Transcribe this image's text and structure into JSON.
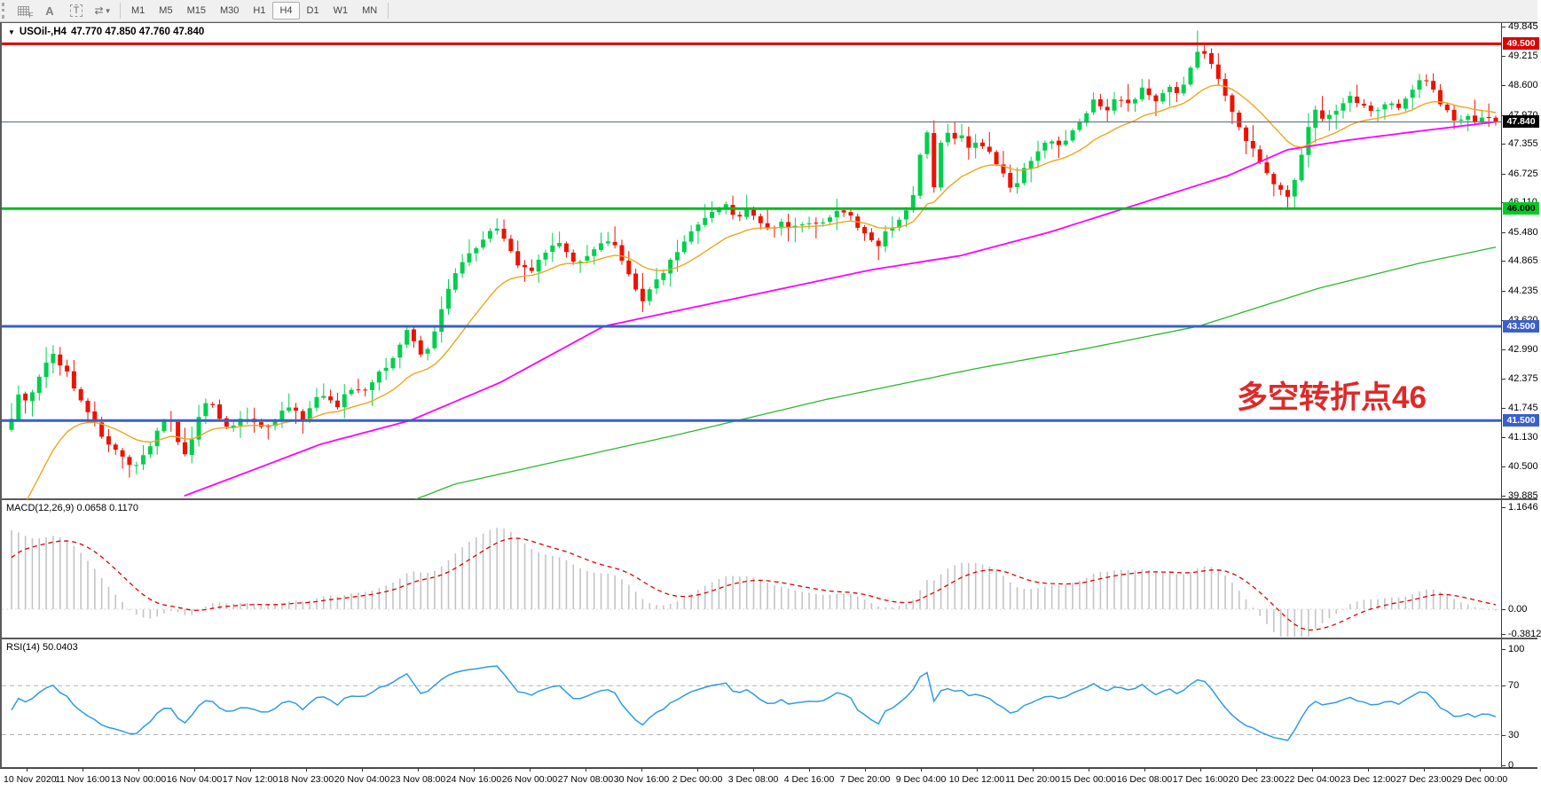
{
  "toolbar": {
    "tool_a_label": "A",
    "tool_t_label": "T",
    "grid_icon_sub": "F",
    "timeframes": [
      "M1",
      "M5",
      "M15",
      "M30",
      "H1",
      "H4",
      "D1",
      "W1",
      "MN"
    ],
    "active_timeframe": "H4"
  },
  "symbol_bar": {
    "symbol": "USOil-,H4",
    "ohlc": "47.770 47.850 47.760 47.840"
  },
  "main_chart": {
    "y_min": 39.885,
    "y_max": 49.845,
    "y_ticks": [
      {
        "v": 49.845,
        "t": "49.845"
      },
      {
        "v": 49.215,
        "t": "49.215"
      },
      {
        "v": 48.6,
        "t": "48.600"
      },
      {
        "v": 47.97,
        "t": "47.970"
      },
      {
        "v": 47.355,
        "t": "47.355"
      },
      {
        "v": 46.725,
        "t": "46.725"
      },
      {
        "v": 46.11,
        "t": "46.110"
      },
      {
        "v": 45.48,
        "t": "45.480"
      },
      {
        "v": 44.865,
        "t": "44.865"
      },
      {
        "v": 44.235,
        "t": "44.235"
      },
      {
        "v": 43.62,
        "t": "43.620"
      },
      {
        "v": 42.99,
        "t": "42.990"
      },
      {
        "v": 42.375,
        "t": "42.375"
      },
      {
        "v": 41.745,
        "t": "41.745"
      },
      {
        "v": 41.13,
        "t": "41.130"
      },
      {
        "v": 40.5,
        "t": "40.500"
      },
      {
        "v": 39.885,
        "t": "39.885"
      }
    ],
    "hlines": [
      {
        "value": 49.5,
        "label": "49.500",
        "color": "#dd0000",
        "width": 3,
        "label_bg": "#dd0000",
        "label_fg": "#ffffff"
      },
      {
        "value": 46.0,
        "label": "46.000",
        "color": "#00bb22",
        "width": 3,
        "label_bg": "#00cc22",
        "label_fg": "#000000"
      },
      {
        "value": 43.5,
        "label": "43.500",
        "color": "#3a5fcd",
        "width": 3,
        "label_bg": "#3a5fcd",
        "label_fg": "#ffffff"
      },
      {
        "value": 41.5,
        "label": "41.500",
        "color": "#3a5fcd",
        "width": 3,
        "label_bg": "#3a5fcd",
        "label_fg": "#ffffff"
      }
    ],
    "current_price": {
      "value": 47.84,
      "label": "47.840",
      "line_color": "#6a7a8a",
      "label_bg": "#000000",
      "label_fg": "#ffffff"
    },
    "annotation": {
      "text": "多空转折点46",
      "color": "#e02828"
    },
    "candle_up_color": "#00cf4e",
    "candle_down_color": "#ee1100",
    "ma_fast_color": "#efa51c",
    "ma_mid_color": "#ff00ff",
    "ma_slow_color": "#2eb82e",
    "close_path": [
      [
        0.0,
        41.6
      ],
      [
        0.006,
        42.1
      ],
      [
        0.012,
        41.9
      ],
      [
        0.02,
        42.5
      ],
      [
        0.028,
        42.9
      ],
      [
        0.036,
        42.6
      ],
      [
        0.042,
        42.2
      ],
      [
        0.05,
        41.8
      ],
      [
        0.058,
        41.3
      ],
      [
        0.066,
        41.0
      ],
      [
        0.074,
        40.7
      ],
      [
        0.082,
        40.4
      ],
      [
        0.09,
        40.8
      ],
      [
        0.098,
        41.3
      ],
      [
        0.106,
        41.6
      ],
      [
        0.112,
        41.1
      ],
      [
        0.118,
        40.7
      ],
      [
        0.124,
        41.4
      ],
      [
        0.132,
        41.9
      ],
      [
        0.14,
        41.6
      ],
      [
        0.148,
        41.3
      ],
      [
        0.156,
        41.6
      ],
      [
        0.164,
        41.5
      ],
      [
        0.172,
        41.3
      ],
      [
        0.18,
        41.6
      ],
      [
        0.188,
        41.8
      ],
      [
        0.196,
        41.5
      ],
      [
        0.204,
        41.9
      ],
      [
        0.212,
        42.1
      ],
      [
        0.22,
        41.8
      ],
      [
        0.228,
        42.2
      ],
      [
        0.236,
        42.1
      ],
      [
        0.244,
        42.4
      ],
      [
        0.252,
        42.6
      ],
      [
        0.26,
        43.0
      ],
      [
        0.266,
        43.4
      ],
      [
        0.272,
        43.1
      ],
      [
        0.278,
        42.8
      ],
      [
        0.284,
        43.3
      ],
      [
        0.29,
        43.9
      ],
      [
        0.296,
        44.5
      ],
      [
        0.302,
        44.8
      ],
      [
        0.31,
        45.1
      ],
      [
        0.318,
        45.4
      ],
      [
        0.326,
        45.6
      ],
      [
        0.334,
        45.2
      ],
      [
        0.342,
        44.8
      ],
      [
        0.35,
        44.6
      ],
      [
        0.358,
        45.0
      ],
      [
        0.366,
        45.3
      ],
      [
        0.374,
        45.1
      ],
      [
        0.382,
        44.8
      ],
      [
        0.39,
        45.0
      ],
      [
        0.398,
        45.3
      ],
      [
        0.406,
        45.2
      ],
      [
        0.414,
        44.8
      ],
      [
        0.42,
        44.3
      ],
      [
        0.426,
        44.0
      ],
      [
        0.432,
        44.4
      ],
      [
        0.44,
        44.7
      ],
      [
        0.448,
        45.1
      ],
      [
        0.456,
        45.4
      ],
      [
        0.464,
        45.7
      ],
      [
        0.472,
        45.9
      ],
      [
        0.48,
        46.1
      ],
      [
        0.488,
        45.8
      ],
      [
        0.496,
        45.95
      ],
      [
        0.504,
        45.7
      ],
      [
        0.512,
        45.55
      ],
      [
        0.52,
        45.7
      ],
      [
        0.528,
        45.6
      ],
      [
        0.536,
        45.75
      ],
      [
        0.544,
        45.6
      ],
      [
        0.552,
        45.8
      ],
      [
        0.56,
        46.0
      ],
      [
        0.568,
        45.7
      ],
      [
        0.576,
        45.4
      ],
      [
        0.584,
        45.25
      ],
      [
        0.592,
        45.6
      ],
      [
        0.6,
        45.85
      ],
      [
        0.608,
        46.3
      ],
      [
        0.616,
        47.8
      ],
      [
        0.622,
        46.3
      ],
      [
        0.628,
        47.8
      ],
      [
        0.634,
        47.4
      ],
      [
        0.64,
        47.55
      ],
      [
        0.646,
        47.3
      ],
      [
        0.652,
        47.45
      ],
      [
        0.658,
        47.2
      ],
      [
        0.664,
        46.9
      ],
      [
        0.67,
        46.6
      ],
      [
        0.676,
        46.4
      ],
      [
        0.682,
        46.8
      ],
      [
        0.69,
        47.2
      ],
      [
        0.698,
        47.5
      ],
      [
        0.706,
        47.3
      ],
      [
        0.714,
        47.65
      ],
      [
        0.722,
        48.0
      ],
      [
        0.73,
        48.3
      ],
      [
        0.738,
        48.1
      ],
      [
        0.746,
        48.4
      ],
      [
        0.754,
        48.2
      ],
      [
        0.762,
        48.55
      ],
      [
        0.77,
        48.3
      ],
      [
        0.778,
        48.6
      ],
      [
        0.786,
        48.4
      ],
      [
        0.794,
        49.0
      ],
      [
        0.8,
        49.45
      ],
      [
        0.806,
        49.2
      ],
      [
        0.812,
        48.8
      ],
      [
        0.818,
        48.4
      ],
      [
        0.824,
        47.9
      ],
      [
        0.83,
        47.5
      ],
      [
        0.836,
        47.3
      ],
      [
        0.842,
        47.0
      ],
      [
        0.848,
        46.7
      ],
      [
        0.854,
        46.4
      ],
      [
        0.86,
        46.25
      ],
      [
        0.866,
        46.8
      ],
      [
        0.872,
        47.5
      ],
      [
        0.878,
        48.1
      ],
      [
        0.886,
        47.9
      ],
      [
        0.894,
        48.15
      ],
      [
        0.902,
        48.4
      ],
      [
        0.91,
        48.2
      ],
      [
        0.918,
        48.0
      ],
      [
        0.926,
        48.25
      ],
      [
        0.934,
        48.1
      ],
      [
        0.942,
        48.5
      ],
      [
        0.95,
        48.85
      ],
      [
        0.956,
        48.6
      ],
      [
        0.962,
        48.3
      ],
      [
        0.968,
        48.0
      ],
      [
        0.974,
        47.85
      ],
      [
        0.98,
        47.95
      ],
      [
        0.986,
        47.8
      ],
      [
        0.992,
        47.9
      ],
      [
        1.0,
        47.84
      ]
    ],
    "ma_mid_points": [
      [
        0.118,
        39.9
      ],
      [
        0.16,
        40.4
      ],
      [
        0.21,
        41.0
      ],
      [
        0.27,
        41.5
      ],
      [
        0.33,
        42.3
      ],
      [
        0.4,
        43.5
      ],
      [
        0.46,
        43.9
      ],
      [
        0.52,
        44.3
      ],
      [
        0.58,
        44.7
      ],
      [
        0.64,
        45.0
      ],
      [
        0.7,
        45.5
      ],
      [
        0.76,
        46.1
      ],
      [
        0.82,
        46.7
      ],
      [
        0.86,
        47.25
      ],
      [
        0.9,
        47.45
      ],
      [
        0.95,
        47.65
      ],
      [
        1.0,
        47.84
      ]
    ],
    "ma_slow_points": [
      [
        0.255,
        39.6
      ],
      [
        0.3,
        40.15
      ],
      [
        0.35,
        40.5
      ],
      [
        0.45,
        41.2
      ],
      [
        0.55,
        41.95
      ],
      [
        0.65,
        42.6
      ],
      [
        0.72,
        43.0
      ],
      [
        0.8,
        43.5
      ],
      [
        0.88,
        44.3
      ],
      [
        0.95,
        44.85
      ],
      [
        1.0,
        45.18
      ]
    ]
  },
  "macd_panel": {
    "label": "MACD(12,26,9) 0.0658 0.1170",
    "y_ticks": [
      {
        "v": 1.1646,
        "t": "1.1646"
      },
      {
        "v": 0,
        "t": "0.00"
      },
      {
        "v": -0.3812,
        "t": "-0.3812"
      }
    ],
    "hist_color": "#c4c4c4",
    "signal_color": "#dd0000"
  },
  "rsi_panel": {
    "label": "RSI(14) 50.0403",
    "y_ticks": [
      {
        "v": 100,
        "t": "100"
      },
      {
        "v": 70,
        "t": "70"
      },
      {
        "v": 30,
        "t": "30"
      },
      {
        "v": 0,
        "t": "0"
      }
    ],
    "levels": [
      70,
      30
    ],
    "line_color": "#2e9be8",
    "level_color": "#b4b4b4"
  },
  "time_axis": {
    "labels": [
      "10 Nov 2020",
      "11 Nov 16:00",
      "13 Nov 00:00",
      "16 Nov 04:00",
      "17 Nov 12:00",
      "18 Nov 23:00",
      "20 Nov 04:00",
      "23 Nov 08:00",
      "24 Nov 16:00",
      "26 Nov 00:00",
      "27 Nov 08:00",
      "30 Nov 16:00",
      "2 Dec 00:00",
      "3 Dec 08:00",
      "4 Dec 16:00",
      "7 Dec 20:00",
      "9 Dec 04:00",
      "10 Dec 12:00",
      "11 Dec 20:00",
      "15 Dec 00:00",
      "16 Dec 08:00",
      "17 Dec 16:00",
      "20 Dec 23:00",
      "22 Dec 04:00",
      "23 Dec 12:00",
      "27 Dec 23:00",
      "29 Dec 00:00"
    ]
  }
}
